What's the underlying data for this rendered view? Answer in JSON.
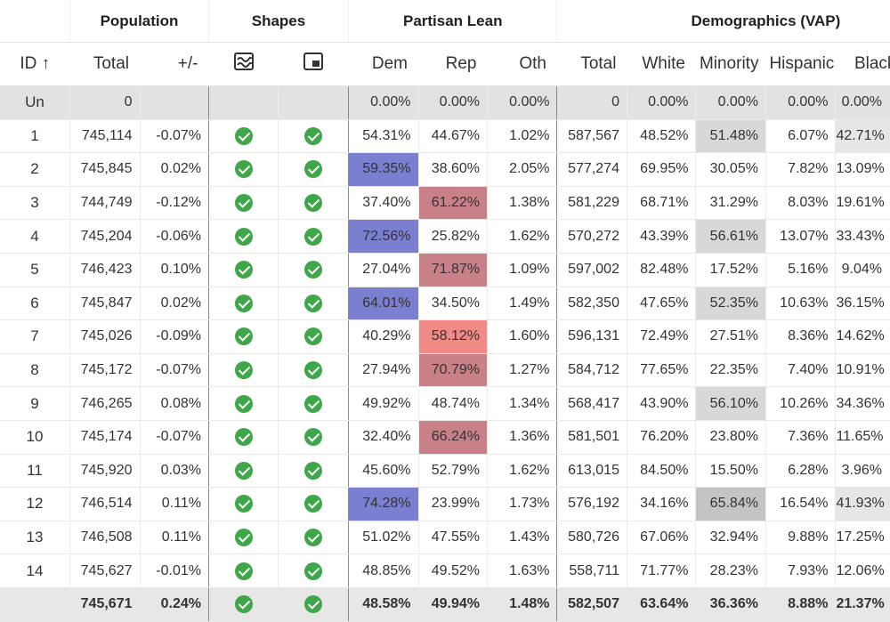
{
  "groups": {
    "population": "Population",
    "shapes": "Shapes",
    "partisan": "Partisan Lean",
    "demographics": "Demographics (VAP)"
  },
  "columns": {
    "id": "ID",
    "sort_arrow": "↑",
    "total": "Total",
    "deviation": "+/-",
    "dem": "Dem",
    "rep": "Rep",
    "oth": "Oth",
    "vap_total": "Total",
    "white": "White",
    "minority": "Minority",
    "hispanic": "Hispanic",
    "black": "Black"
  },
  "icons": {
    "shape_col1": "contiguity-icon",
    "shape_col2": "compactness-icon",
    "check": "check-circle-icon"
  },
  "colors": {
    "check": "#3fa64a",
    "dem_highlight": "#7b7fd0",
    "rep_highlight": "#c98088",
    "rep_highlight_light": "#f08a84"
  },
  "unassigned": {
    "id": "Un",
    "total": "0",
    "deviation": "",
    "dem": "0.00%",
    "rep": "0.00%",
    "oth": "0.00%",
    "vap_total": "0",
    "white": "0.00%",
    "minority": "0.00%",
    "hispanic": "0.00%",
    "black": "0.00%"
  },
  "rows": [
    {
      "id": "1",
      "total": "745,114",
      "deviation": "-0.07%",
      "dem": "54.31%",
      "rep": "44.67%",
      "oth": "1.02%",
      "vap_total": "587,567",
      "white": "48.52%",
      "minority": "51.48%",
      "hispanic": "6.07%",
      "black": "42.71%"
    },
    {
      "id": "2",
      "total": "745,845",
      "deviation": "0.02%",
      "dem": "59.35%",
      "rep": "38.60%",
      "oth": "2.05%",
      "vap_total": "577,274",
      "white": "69.95%",
      "minority": "30.05%",
      "hispanic": "7.82%",
      "black": "13.09%"
    },
    {
      "id": "3",
      "total": "744,749",
      "deviation": "-0.12%",
      "dem": "37.40%",
      "rep": "61.22%",
      "oth": "1.38%",
      "vap_total": "581,229",
      "white": "68.71%",
      "minority": "31.29%",
      "hispanic": "8.03%",
      "black": "19.61%"
    },
    {
      "id": "4",
      "total": "745,204",
      "deviation": "-0.06%",
      "dem": "72.56%",
      "rep": "25.82%",
      "oth": "1.62%",
      "vap_total": "570,272",
      "white": "43.39%",
      "minority": "56.61%",
      "hispanic": "13.07%",
      "black": "33.43%"
    },
    {
      "id": "5",
      "total": "746,423",
      "deviation": "0.10%",
      "dem": "27.04%",
      "rep": "71.87%",
      "oth": "1.09%",
      "vap_total": "597,002",
      "white": "82.48%",
      "minority": "17.52%",
      "hispanic": "5.16%",
      "black": "9.04%"
    },
    {
      "id": "6",
      "total": "745,847",
      "deviation": "0.02%",
      "dem": "64.01%",
      "rep": "34.50%",
      "oth": "1.49%",
      "vap_total": "582,350",
      "white": "47.65%",
      "minority": "52.35%",
      "hispanic": "10.63%",
      "black": "36.15%"
    },
    {
      "id": "7",
      "total": "745,026",
      "deviation": "-0.09%",
      "dem": "40.29%",
      "rep": "58.12%",
      "oth": "1.60%",
      "vap_total": "596,131",
      "white": "72.49%",
      "minority": "27.51%",
      "hispanic": "8.36%",
      "black": "14.62%"
    },
    {
      "id": "8",
      "total": "745,172",
      "deviation": "-0.07%",
      "dem": "27.94%",
      "rep": "70.79%",
      "oth": "1.27%",
      "vap_total": "584,712",
      "white": "77.65%",
      "minority": "22.35%",
      "hispanic": "7.40%",
      "black": "10.91%"
    },
    {
      "id": "9",
      "total": "746,265",
      "deviation": "0.08%",
      "dem": "49.92%",
      "rep": "48.74%",
      "oth": "1.34%",
      "vap_total": "568,417",
      "white": "43.90%",
      "minority": "56.10%",
      "hispanic": "10.26%",
      "black": "34.36%"
    },
    {
      "id": "10",
      "total": "745,174",
      "deviation": "-0.07%",
      "dem": "32.40%",
      "rep": "66.24%",
      "oth": "1.36%",
      "vap_total": "581,501",
      "white": "76.20%",
      "minority": "23.80%",
      "hispanic": "7.36%",
      "black": "11.65%"
    },
    {
      "id": "11",
      "total": "745,920",
      "deviation": "0.03%",
      "dem": "45.60%",
      "rep": "52.79%",
      "oth": "1.62%",
      "vap_total": "613,015",
      "white": "84.50%",
      "minority": "15.50%",
      "hispanic": "6.28%",
      "black": "3.96%"
    },
    {
      "id": "12",
      "total": "746,514",
      "deviation": "0.11%",
      "dem": "74.28%",
      "rep": "23.99%",
      "oth": "1.73%",
      "vap_total": "576,192",
      "white": "34.16%",
      "minority": "65.84%",
      "hispanic": "16.54%",
      "black": "41.93%"
    },
    {
      "id": "13",
      "total": "746,508",
      "deviation": "0.11%",
      "dem": "51.02%",
      "rep": "47.55%",
      "oth": "1.43%",
      "vap_total": "580,726",
      "white": "67.06%",
      "minority": "32.94%",
      "hispanic": "9.88%",
      "black": "17.25%"
    },
    {
      "id": "14",
      "total": "745,627",
      "deviation": "-0.01%",
      "dem": "48.85%",
      "rep": "49.52%",
      "oth": "1.63%",
      "vap_total": "558,711",
      "white": "71.77%",
      "minority": "28.23%",
      "hispanic": "7.93%",
      "black": "12.06%"
    }
  ],
  "summary": {
    "id": "",
    "total": "745,671",
    "deviation": "0.24%",
    "dem": "48.58%",
    "rep": "49.94%",
    "oth": "1.48%",
    "vap_total": "582,507",
    "white": "63.64%",
    "minority": "36.36%",
    "hispanic": "8.88%",
    "black": "21.37%"
  }
}
